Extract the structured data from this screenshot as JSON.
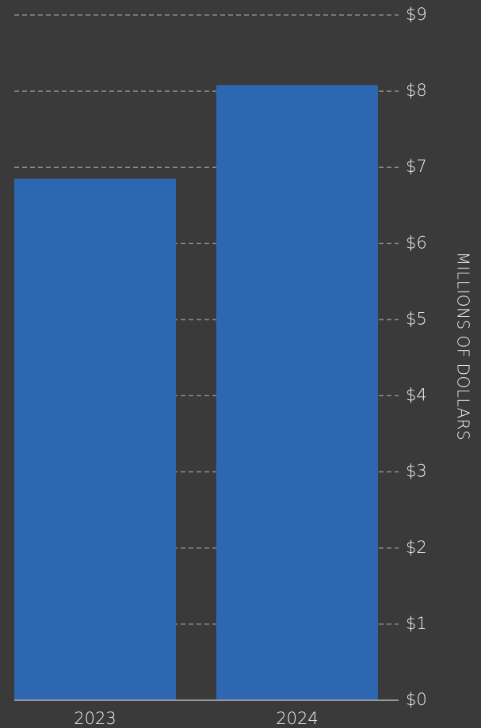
{
  "chart_data": {
    "type": "bar",
    "categories": [
      "2023",
      "2024"
    ],
    "values": [
      6.85,
      8.08
    ],
    "ylabel": "MILLIONS OF DOLLARS",
    "ylim": [
      0,
      9
    ],
    "yticks": [
      0,
      1,
      2,
      3,
      4,
      5,
      6,
      7,
      8,
      9
    ],
    "ytick_labels": [
      "$0",
      "$1",
      "$2",
      "$3",
      "$4",
      "$5",
      "$6",
      "$7",
      "$8",
      "$9"
    ],
    "y_axis_position": "right",
    "grid": true,
    "legend": "none",
    "colors": {
      "background": "#3a3a3a",
      "bar": "#2e67b1",
      "grid": "#8a8a8a",
      "baseline": "#9a9a9a",
      "text": "#f0f0f0"
    }
  }
}
